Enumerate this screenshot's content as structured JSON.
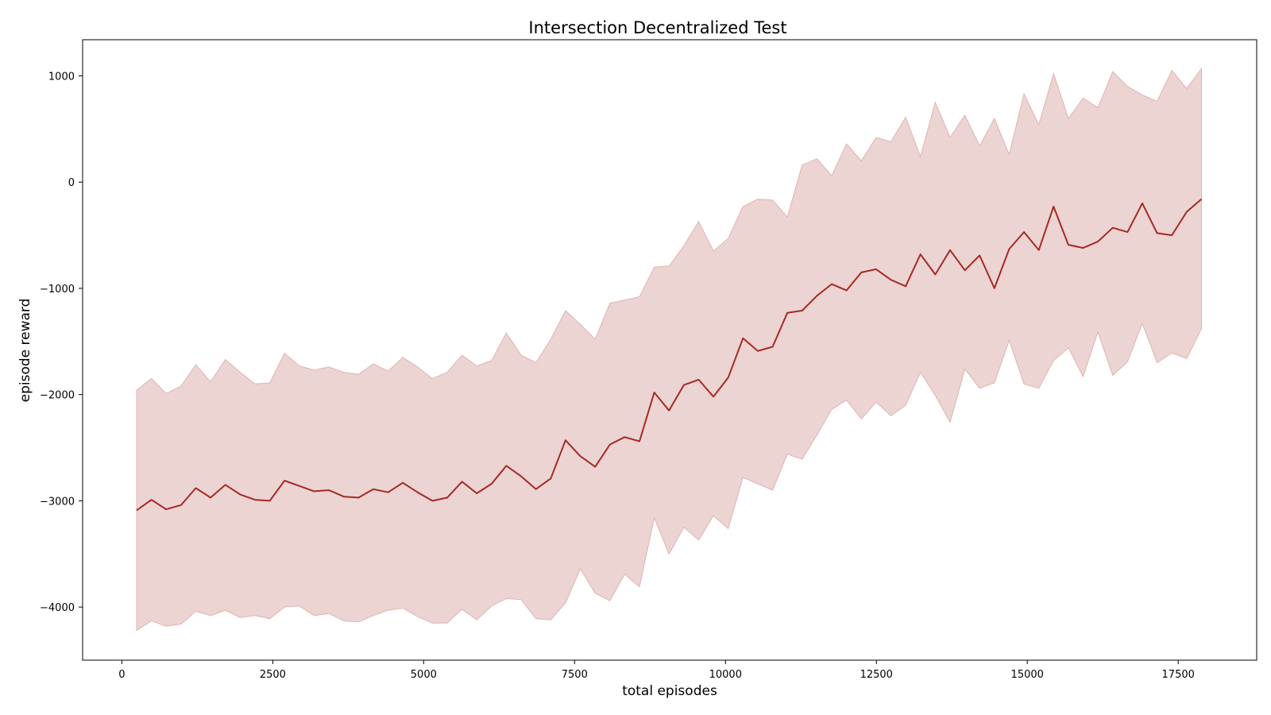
{
  "chart_data": {
    "type": "line",
    "title": "Intersection Decentralized Test",
    "xlabel": "total episodes",
    "ylabel": "episode reward",
    "xlim": [
      -650,
      18800
    ],
    "ylim": [
      -4500,
      1340
    ],
    "xticks": [
      0,
      2500,
      5000,
      7500,
      10000,
      12500,
      15000,
      17500
    ],
    "xtick_labels": [
      "0",
      "2500",
      "5000",
      "7500",
      "10000",
      "12500",
      "15000",
      "17500"
    ],
    "yticks": [
      -4000,
      -3000,
      -2000,
      -1000,
      0,
      1000
    ],
    "ytick_labels": [
      "−4000",
      "−3000",
      "−2000",
      "−1000",
      "0",
      "1000"
    ],
    "grid": false,
    "legend": "none",
    "colors": {
      "line": "#a52a22",
      "band_fill": "#ecd4d3",
      "band_edge": "#e0b3b0",
      "axes": "#000000"
    },
    "series": [
      {
        "type": "line",
        "x": [
          245,
          490,
          735,
          980,
          1225,
          1470,
          1715,
          1960,
          2205,
          2450,
          2695,
          2940,
          3185,
          3430,
          3675,
          3920,
          4165,
          4410,
          4655,
          4900,
          5145,
          5390,
          5635,
          5880,
          6125,
          6370,
          6615,
          6860,
          7105,
          7350,
          7595,
          7840,
          8085,
          8330,
          8575,
          8820,
          9065,
          9310,
          9555,
          9800,
          10045,
          10290,
          10535,
          10780,
          11025,
          11270,
          11515,
          11760,
          12005,
          12250,
          12495,
          12740,
          12985,
          13230,
          13475,
          13720,
          13965,
          14210,
          14455,
          14700,
          14945,
          15190,
          15435,
          15680,
          15925,
          16170,
          16415,
          16660,
          16905,
          17150,
          17395,
          17640,
          17885
        ],
        "y": [
          -3090,
          -2990,
          -3080,
          -3040,
          -2880,
          -2970,
          -2850,
          -2940,
          -2990,
          -3000,
          -2810,
          -2860,
          -2910,
          -2900,
          -2960,
          -2970,
          -2890,
          -2920,
          -2830,
          -2920,
          -3000,
          -2970,
          -2820,
          -2930,
          -2840,
          -2670,
          -2770,
          -2890,
          -2790,
          -2430,
          -2580,
          -2680,
          -2470,
          -2400,
          -2440,
          -1980,
          -2150,
          -1910,
          -1860,
          -2020,
          -1840,
          -1470,
          -1590,
          -1550,
          -1230,
          -1210,
          -1070,
          -960,
          -1020,
          -850,
          -820,
          -920,
          -980,
          -680,
          -870,
          -640,
          -830,
          -690,
          -1000,
          -630,
          -470,
          -640,
          -230,
          -590,
          -620,
          -560,
          -430,
          -470,
          -200,
          -480,
          -500,
          -280,
          -160
        ]
      }
    ],
    "band": {
      "x": [
        245,
        490,
        735,
        980,
        1225,
        1470,
        1715,
        1960,
        2205,
        2450,
        2695,
        2940,
        3185,
        3430,
        3675,
        3920,
        4165,
        4410,
        4655,
        4900,
        5145,
        5390,
        5635,
        5880,
        6125,
        6370,
        6615,
        6860,
        7105,
        7350,
        7595,
        7840,
        8085,
        8330,
        8575,
        8820,
        9065,
        9310,
        9555,
        9800,
        10045,
        10290,
        10535,
        10780,
        11025,
        11270,
        11515,
        11760,
        12005,
        12250,
        12495,
        12740,
        12985,
        13230,
        13475,
        13720,
        13965,
        14210,
        14455,
        14700,
        14945,
        15190,
        15435,
        15680,
        15925,
        16170,
        16415,
        16660,
        16905,
        17150,
        17395,
        17640,
        17885
      ],
      "upper": [
        -1960,
        -1850,
        -1990,
        -1920,
        -1720,
        -1880,
        -1670,
        -1790,
        -1900,
        -1890,
        -1610,
        -1730,
        -1770,
        -1740,
        -1790,
        -1810,
        -1710,
        -1780,
        -1650,
        -1740,
        -1850,
        -1790,
        -1630,
        -1730,
        -1680,
        -1420,
        -1630,
        -1700,
        -1480,
        -1210,
        -1340,
        -1480,
        -1140,
        -1110,
        -1080,
        -800,
        -790,
        -600,
        -370,
        -650,
        -530,
        -230,
        -160,
        -170,
        -330,
        160,
        220,
        60,
        360,
        200,
        420,
        380,
        610,
        240,
        750,
        420,
        630,
        340,
        600,
        260,
        830,
        540,
        1020,
        600,
        790,
        700,
        1040,
        900,
        820,
        760,
        1050,
        880,
        1070
      ],
      "lower": [
        -4220,
        -4130,
        -4180,
        -4160,
        -4040,
        -4080,
        -4030,
        -4100,
        -4080,
        -4110,
        -4000,
        -3990,
        -4080,
        -4060,
        -4130,
        -4140,
        -4080,
        -4030,
        -4010,
        -4090,
        -4150,
        -4150,
        -4020,
        -4120,
        -3990,
        -3920,
        -3930,
        -4110,
        -4120,
        -3960,
        -3640,
        -3870,
        -3940,
        -3690,
        -3810,
        -3160,
        -3500,
        -3250,
        -3370,
        -3140,
        -3260,
        -2780,
        -2840,
        -2900,
        -2560,
        -2610,
        -2380,
        -2140,
        -2050,
        -2230,
        -2070,
        -2200,
        -2100,
        -1790,
        -2010,
        -2260,
        -1760,
        -1940,
        -1890,
        -1490,
        -1900,
        -1940,
        -1680,
        -1560,
        -1830,
        -1410,
        -1820,
        -1690,
        -1330,
        -1700,
        -1610,
        -1660,
        -1380
      ]
    }
  }
}
